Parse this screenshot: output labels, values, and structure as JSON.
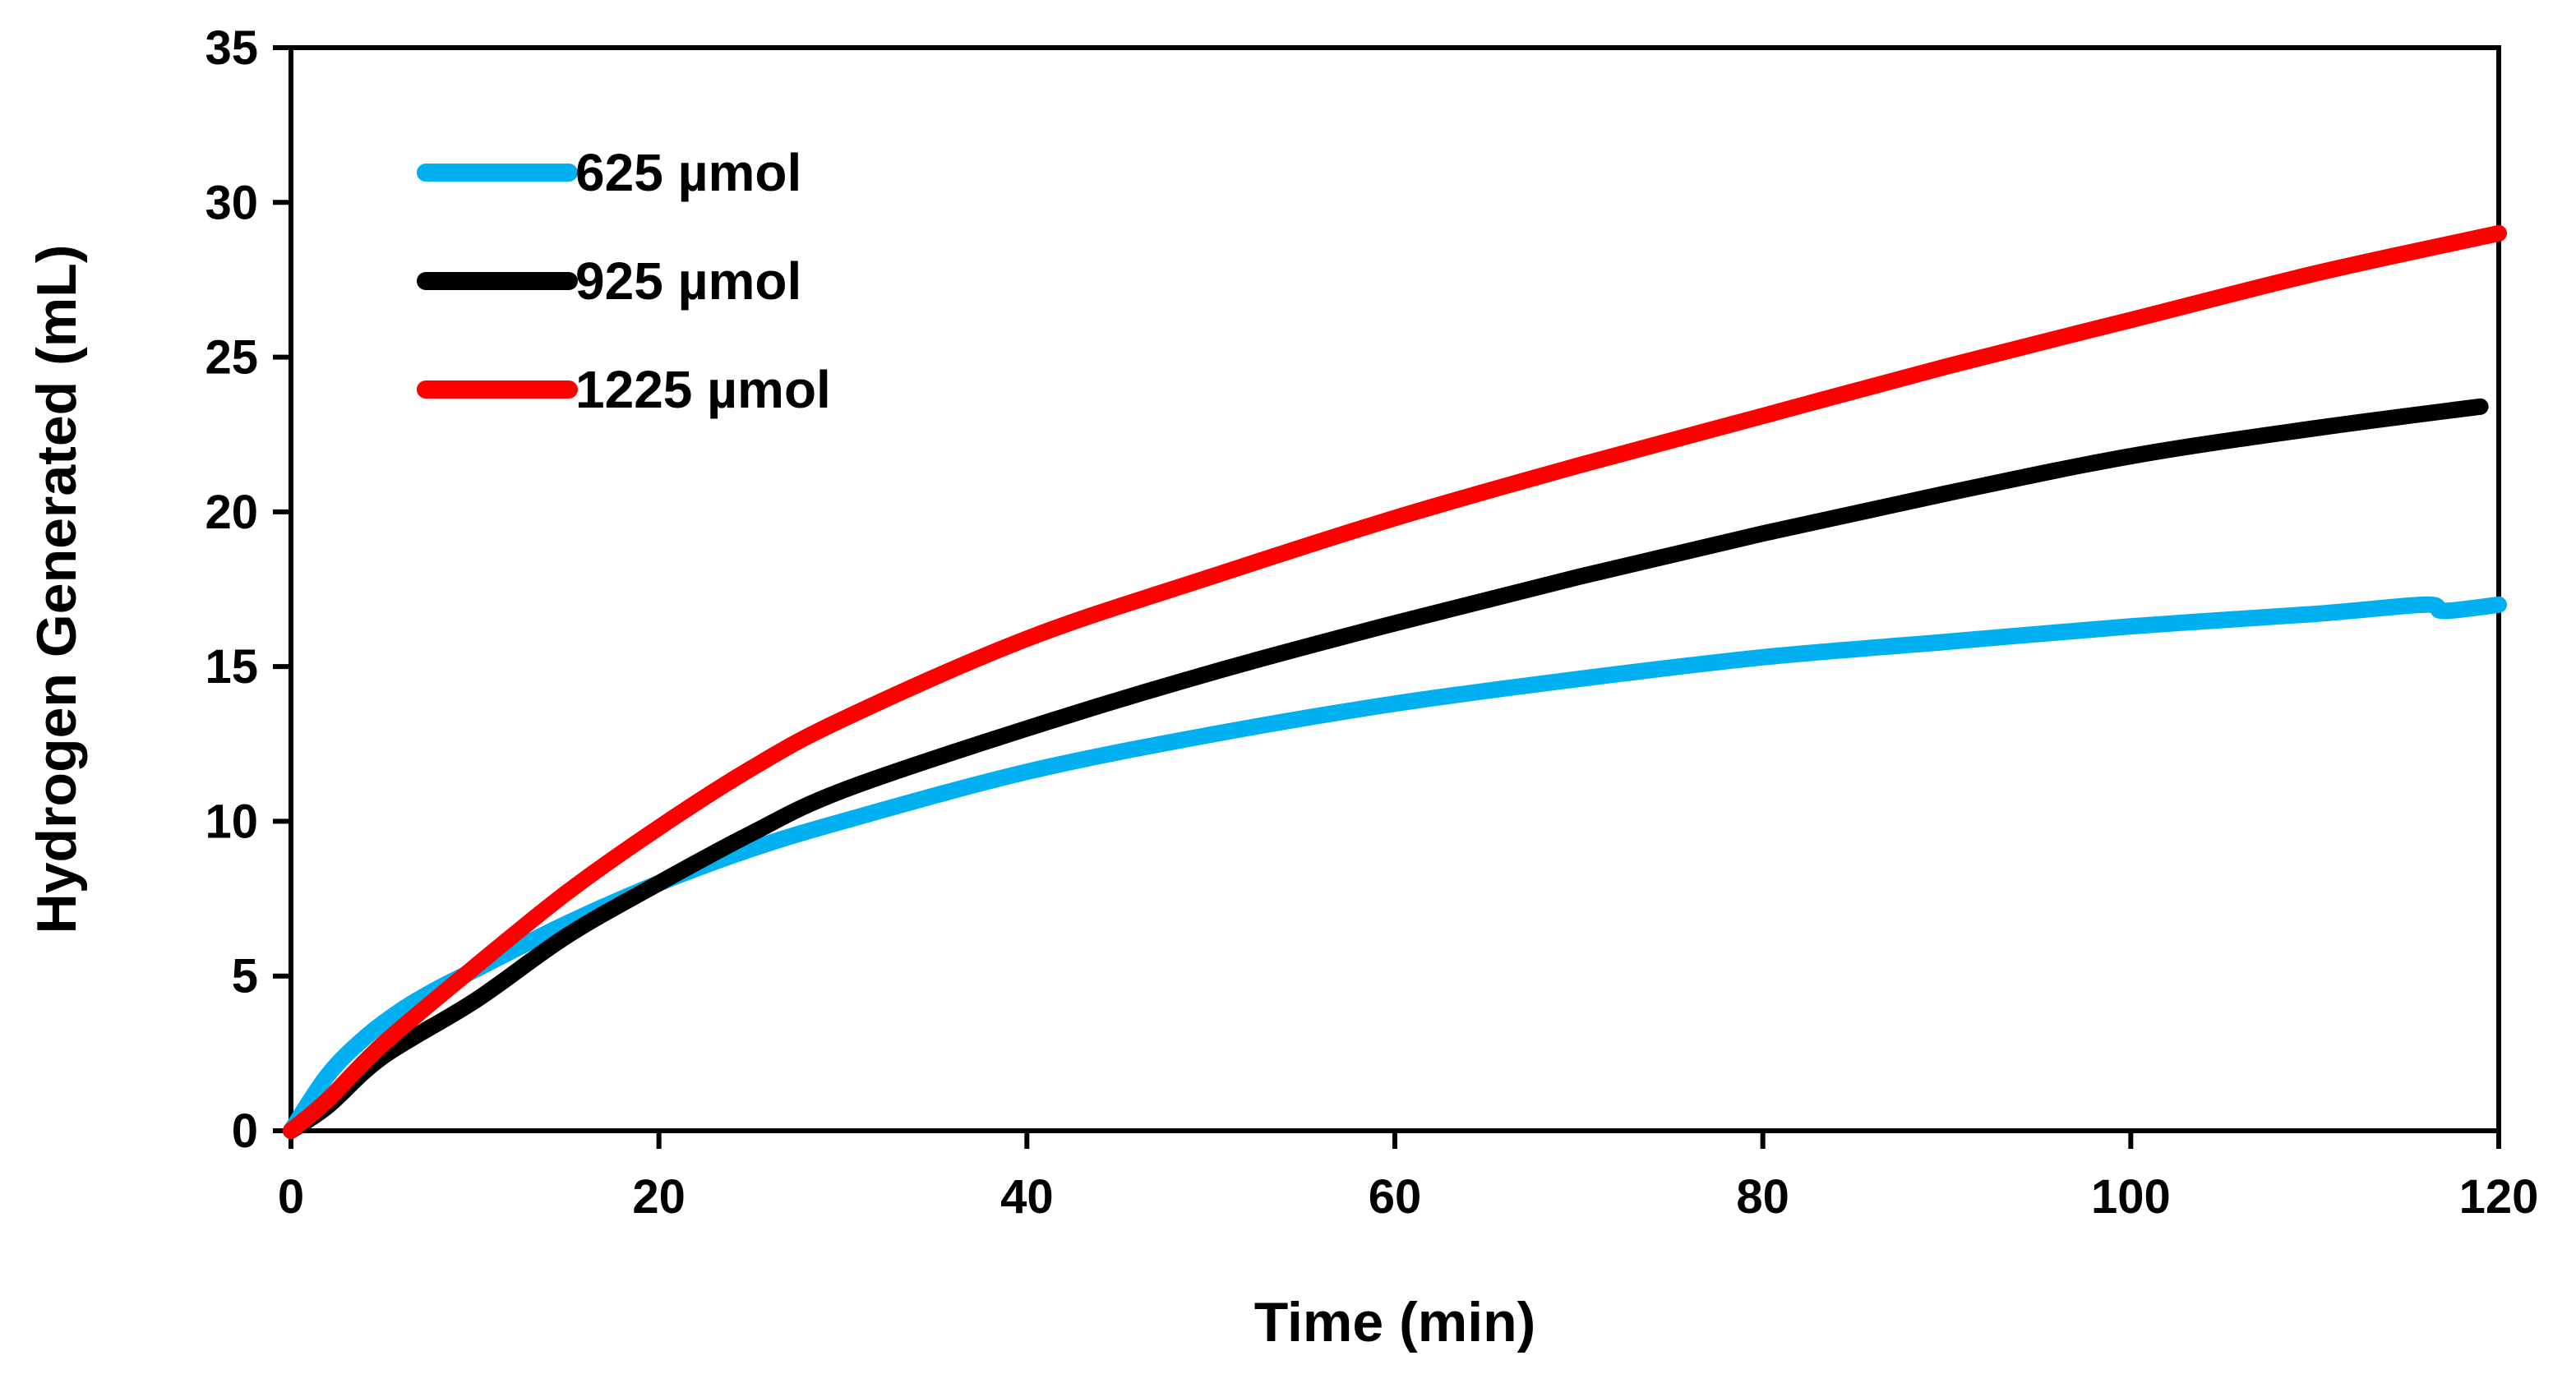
{
  "chart_data": {
    "type": "line",
    "title": "",
    "xlabel": "Time (min)",
    "ylabel": "Hydrogen Generated (mL)",
    "xlim": [
      0,
      120
    ],
    "ylim": [
      0,
      35
    ],
    "xticks": [
      "0",
      "20",
      "40",
      "60",
      "80",
      "100",
      "120"
    ],
    "yticks": [
      "0",
      "5",
      "10",
      "15",
      "20",
      "25",
      "30",
      "35"
    ],
    "grid": false,
    "legend_position": "top-left",
    "series": [
      {
        "name": "625 µmol",
        "color": "#00b0f0",
        "x": [
          0,
          2,
          4,
          6,
          8,
          10,
          15,
          20,
          25,
          30,
          40,
          50,
          60,
          70,
          80,
          90,
          100,
          110,
          116,
          117,
          120
        ],
        "y": [
          0,
          1.8,
          3.0,
          3.9,
          4.6,
          5.2,
          6.7,
          8.0,
          9.1,
          10.0,
          11.6,
          12.8,
          13.8,
          14.6,
          15.3,
          15.8,
          16.3,
          16.7,
          17.0,
          16.8,
          17.0
        ]
      },
      {
        "name": "925 µmol",
        "color": "#000000",
        "x": [
          0,
          2,
          5,
          10,
          15,
          20,
          25,
          30,
          40,
          50,
          60,
          70,
          80,
          90,
          100,
          110,
          119
        ],
        "y": [
          0,
          0.8,
          2.4,
          4.2,
          6.3,
          8.0,
          9.6,
          11.0,
          13.0,
          14.8,
          16.4,
          17.9,
          19.3,
          20.6,
          21.8,
          22.7,
          23.4
        ]
      },
      {
        "name": "1225 µmol",
        "color": "#ff0000",
        "x": [
          0,
          2,
          5,
          10,
          15,
          20,
          25,
          30,
          40,
          50,
          60,
          70,
          80,
          90,
          100,
          110,
          120
        ],
        "y": [
          0,
          1.0,
          2.8,
          5.3,
          7.7,
          9.8,
          11.7,
          13.3,
          15.9,
          17.9,
          19.8,
          21.5,
          23.1,
          24.7,
          26.2,
          27.7,
          29.0
        ]
      }
    ]
  }
}
